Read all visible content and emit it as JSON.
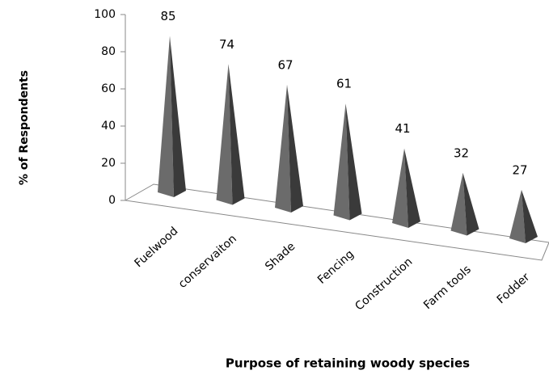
{
  "chart_data": {
    "type": "pyramid",
    "x_label": "Purpose of retaining woody species",
    "y_label": "% of Respondents",
    "categories": [
      "Fuelwood",
      "conservaiton",
      "Shade",
      "Fencing",
      "Construction",
      "Farm tools",
      "Fodder"
    ],
    "values": [
      85,
      74,
      67,
      61,
      41,
      32,
      27
    ],
    "color": "#6b6b6b",
    "ylim": [
      0,
      100
    ],
    "yticks": [
      0,
      20,
      40,
      60,
      80,
      100
    ]
  }
}
